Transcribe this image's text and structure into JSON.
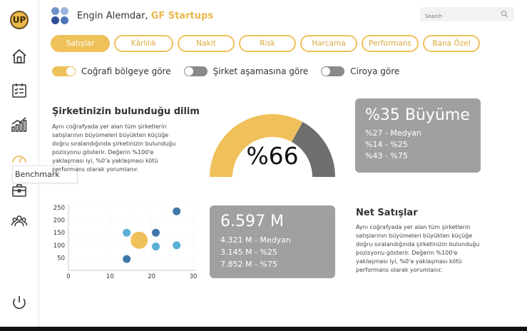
{
  "brand": {
    "logo_text": "UP",
    "user_name": "Engin Alemdar,",
    "company": "GF Startups",
    "dot_colors": [
      "#6f93c9",
      "#9bb4dc",
      "#2f4f96",
      "#4e74b8"
    ]
  },
  "search": {
    "placeholder": "Search",
    "icon": "search-icon"
  },
  "sidebar": {
    "items": [
      {
        "icon": "home-icon"
      },
      {
        "icon": "checklist-icon"
      },
      {
        "icon": "bar-chart-icon"
      },
      {
        "icon": "gauge-icon"
      },
      {
        "icon": "briefcase-icon"
      },
      {
        "icon": "users-icon"
      },
      {
        "icon": "power-icon"
      }
    ],
    "tooltip": "Benchmark"
  },
  "tabs": [
    {
      "label": "Satışlar",
      "active": true
    },
    {
      "label": "Kârlılık",
      "active": false
    },
    {
      "label": "Nakit",
      "active": false
    },
    {
      "label": "Risk",
      "active": false
    },
    {
      "label": "Harcama",
      "active": false
    },
    {
      "label": "Performans",
      "active": false
    },
    {
      "label": "Bana Özel",
      "active": false
    }
  ],
  "toggles": [
    {
      "label": "Coğrafi bölgeye göre",
      "on": true
    },
    {
      "label": "Şirket aşamasına göre",
      "on": false
    },
    {
      "label": "Ciroya göre",
      "on": false
    }
  ],
  "segment": {
    "title": "Şirketinizin bulunduğu dilim",
    "text_lines": [
      "Aynı coğrafyada yer alan  tüm şirketlerin",
      "satışlarının büyümeleri büyükten küçüğe",
      "doğru sıralandığında şirketinizin bulunduğu",
      "pozisyonu gösterir. Değerin %100'e",
      "yaklaşması iyi, %0'a yaklaşması kötü",
      "performans olarak yorumlanır."
    ],
    "gauge_value": "%66",
    "gauge_fraction": 0.66,
    "gauge_colors": {
      "fill": "#f0c05a",
      "rest": "#6e6e6e"
    }
  },
  "growth_card": {
    "headline": "%35 Büyüme",
    "lines": [
      "%27 - Medyan",
      "%14 - %25",
      "%43 - %75"
    ]
  },
  "net_sales_card": {
    "headline": "6.597 M",
    "lines": [
      "4.321 M - Medyan",
      "3.145 M - %25",
      "7.852 M - %75"
    ]
  },
  "net_sales": {
    "title": "Net Satışlar",
    "text_lines": [
      "Aynı coğrafyada yer alan  tüm şirketlerin",
      "satışlarının büyümeleri büyükten küçüğe",
      "doğru sıralandığında şirketinizin bulunduğu",
      "pozisyonu gösterir. Değerin %100'e",
      "yaklaşması iyi, %0'a yaklaşması kötü",
      "performans olarak yorumlanır."
    ]
  },
  "chart_data": {
    "type": "scatter",
    "title": "",
    "xlabel": "",
    "ylabel": "",
    "xlim": [
      0,
      30
    ],
    "ylim": [
      0,
      250
    ],
    "x_ticks": [
      0,
      10,
      20,
      30
    ],
    "y_ticks": [
      50,
      100,
      150,
      200,
      250
    ],
    "grid": true,
    "points": [
      {
        "x": 14,
        "y": 45,
        "size": "small",
        "color": "#3f78a8"
      },
      {
        "x": 14,
        "y": 150,
        "size": "small",
        "color": "#5ab0d6"
      },
      {
        "x": 17,
        "y": 120,
        "size": "large",
        "color": "#f0c05a"
      },
      {
        "x": 21,
        "y": 150,
        "size": "small",
        "color": "#3f78a8"
      },
      {
        "x": 21,
        "y": 95,
        "size": "small",
        "color": "#5ab0d6"
      },
      {
        "x": 26,
        "y": 235,
        "size": "small",
        "color": "#3f78a8"
      },
      {
        "x": 26,
        "y": 100,
        "size": "small",
        "color": "#5ab0d6"
      }
    ]
  }
}
